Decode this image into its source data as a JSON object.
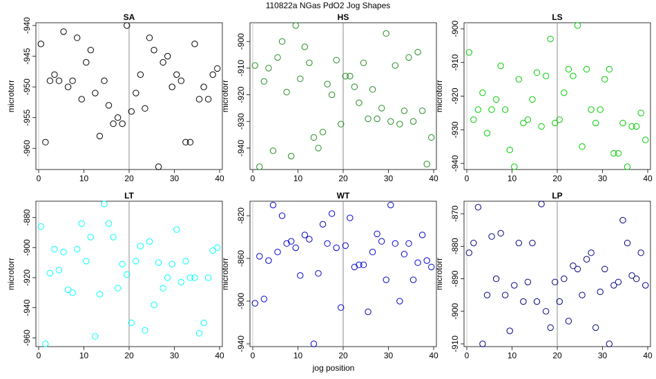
{
  "figure": {
    "title": "110822a   NGas PdO2 Jog Shapes",
    "xlabel": "jog position"
  },
  "chart_data": [
    {
      "type": "scatter",
      "title": "SA",
      "ylabel": "microtorr",
      "color": "#000000",
      "xlim": [
        0,
        40
      ],
      "ylim": [
        -963,
        -940
      ],
      "xticks": [
        0,
        10,
        20,
        30,
        40
      ],
      "yticks": [
        -960,
        -955,
        -950,
        -945,
        -940
      ],
      "vline_x": 20,
      "x": [
        0.5,
        1.5,
        2.5,
        3.5,
        4.5,
        5.5,
        6.5,
        7.5,
        8.5,
        9.5,
        10.5,
        11.5,
        12.5,
        13.5,
        14.5,
        15.5,
        16.5,
        17.5,
        18.5,
        19.5,
        20.5,
        21.5,
        22.5,
        23.5,
        24.5,
        25.5,
        26.5,
        27.5,
        28.5,
        29.5,
        30.5,
        31.5,
        32.5,
        33.5,
        34.5,
        35.5,
        36.5,
        37.5,
        38.5,
        39.5
      ],
      "y": [
        -943,
        -959,
        -949,
        -948,
        -949,
        -941,
        -950,
        -949,
        -942,
        -952,
        -946,
        -944,
        -951,
        -958,
        -949,
        -953,
        -956,
        -955,
        -956,
        -940,
        -954,
        -951,
        -948,
        -953.5,
        -942,
        -944,
        -963,
        -946,
        -945,
        -950,
        -948,
        -949,
        -959,
        -959,
        -943,
        -952,
        -950,
        -952,
        -948,
        -947
      ]
    },
    {
      "type": "scatter",
      "title": "HS",
      "ylabel": "microtorr",
      "color": "#228B22",
      "xlim": [
        0,
        40
      ],
      "ylim": [
        -947,
        -894
      ],
      "xticks": [
        0,
        10,
        20,
        30,
        40
      ],
      "yticks": [
        -940,
        -930,
        -920,
        -910,
        -900
      ],
      "vline_x": 20,
      "x": [
        0.5,
        1.5,
        2.5,
        3.5,
        4.5,
        5.5,
        6.5,
        7.5,
        8.5,
        9.5,
        10.5,
        11.5,
        12.5,
        13.5,
        14.5,
        15.5,
        16.5,
        17.5,
        18.5,
        19.5,
        20.5,
        21.5,
        22.5,
        23.5,
        24.5,
        25.5,
        26.5,
        27.5,
        28.5,
        29.5,
        30.5,
        31.5,
        32.5,
        33.5,
        34.5,
        35.5,
        36.5,
        37.5,
        38.5,
        39.5
      ],
      "y": [
        -909,
        -947,
        -915,
        -910,
        -941,
        -906,
        -900,
        -919,
        -943,
        -894,
        -914,
        -902,
        -908,
        -936,
        -940,
        -934,
        -916,
        -920,
        -907,
        -931,
        -913,
        -913,
        -917,
        -923,
        -908,
        -929,
        -918,
        -929,
        -925,
        -897,
        -930,
        -909,
        -931,
        -926,
        -906,
        -930,
        -904,
        -926,
        -946,
        -936
      ]
    },
    {
      "type": "scatter",
      "title": "LS",
      "ylabel": "microtorr",
      "color": "#00CC00",
      "xlim": [
        0,
        40
      ],
      "ylim": [
        -941,
        -899
      ],
      "xticks": [
        0,
        10,
        20,
        30,
        40
      ],
      "yticks": [
        -940,
        -930,
        -920,
        -910,
        -900
      ],
      "vline_x": 20,
      "x": [
        0.5,
        1.5,
        2.5,
        3.5,
        4.5,
        5.5,
        6.5,
        7.5,
        8.5,
        9.5,
        10.5,
        11.5,
        12.5,
        13.5,
        14.5,
        15.5,
        16.5,
        17.5,
        18.5,
        19.5,
        20.5,
        21.5,
        22.5,
        23.5,
        24.5,
        25.5,
        26.5,
        27.5,
        28.5,
        29.5,
        30.5,
        31.5,
        32.5,
        33.5,
        34.5,
        35.5,
        36.5,
        37.5,
        38.5,
        39.5
      ],
      "y": [
        -907,
        -927,
        -924,
        -919,
        -931,
        -924,
        -921,
        -911,
        -924,
        -936,
        -941,
        -915,
        -928,
        -927,
        -921,
        -913,
        -929,
        -914,
        -903,
        -928,
        -927,
        -919,
        -912,
        -914,
        -899,
        -935,
        -912,
        -924,
        -928,
        -924,
        -915,
        -912,
        -937,
        -937,
        -928,
        -941,
        -929,
        -929,
        -925,
        -933
      ]
    },
    {
      "type": "scatter",
      "title": "LT",
      "ylabel": "microtorr",
      "color": "#00FFFF",
      "xlim": [
        0,
        40
      ],
      "ylim": [
        -964,
        -871
      ],
      "xticks": [
        0,
        10,
        20,
        30,
        40
      ],
      "yticks": [
        -960,
        -940,
        -920,
        -900,
        -880
      ],
      "vline_x": 20,
      "x": [
        0.5,
        1.5,
        2.5,
        3.5,
        4.5,
        5.5,
        6.5,
        7.5,
        8.5,
        9.5,
        10.5,
        11.5,
        12.5,
        13.5,
        14.5,
        15.5,
        16.5,
        17.5,
        18.5,
        19.5,
        20.5,
        21.5,
        22.5,
        23.5,
        24.5,
        25.5,
        26.5,
        27.5,
        28.5,
        29.5,
        30.5,
        31.5,
        32.5,
        33.5,
        34.5,
        35.5,
        36.5,
        37.5,
        38.5,
        39.5
      ],
      "y": [
        -886,
        -964,
        -917,
        -901,
        -915,
        -903,
        -928,
        -930,
        -901,
        -884,
        -909,
        -893,
        -959,
        -931,
        -871,
        -884,
        -893,
        -927,
        -911,
        -918,
        -950,
        -909,
        -899,
        -955,
        -896,
        -938,
        -910,
        -927,
        -920,
        -911,
        -888,
        -923,
        -909,
        -920,
        -920,
        -957,
        -950,
        -920,
        -902,
        -900
      ]
    },
    {
      "type": "scatter",
      "title": "WT",
      "ylabel": "microtorr",
      "color": "#0000CC",
      "xlim": [
        0,
        40
      ],
      "ylim": [
        -940,
        -809
      ],
      "xticks": [
        0,
        10,
        20,
        30,
        40
      ],
      "yticks": [
        -940,
        -900,
        -860,
        -820
      ],
      "vline_x": 20,
      "x": [
        0.5,
        1.5,
        2.5,
        3.5,
        4.5,
        5.5,
        6.5,
        7.5,
        8.5,
        9.5,
        10.5,
        11.5,
        12.5,
        13.5,
        14.5,
        15.5,
        16.5,
        17.5,
        18.5,
        19.5,
        20.5,
        21.5,
        22.5,
        23.5,
        24.5,
        25.5,
        26.5,
        27.5,
        28.5,
        29.5,
        30.5,
        31.5,
        32.5,
        33.5,
        34.5,
        35.5,
        36.5,
        37.5,
        38.5,
        39.5
      ],
      "y": [
        -902,
        -858,
        -898,
        -862,
        -810,
        -854,
        -820,
        -846,
        -844,
        -850,
        -876,
        -838,
        -842,
        -940,
        -874,
        -828,
        -846,
        -818,
        -850,
        -906,
        -848,
        -822,
        -868,
        -866,
        -866,
        -910,
        -854,
        -837,
        -844,
        -880,
        -810,
        -846,
        -900,
        -856,
        -846,
        -880,
        -864,
        -838,
        -862,
        -868
      ]
    },
    {
      "type": "scatter",
      "title": "LP",
      "ylabel": "microtorr",
      "color": "#000080",
      "xlim": [
        0,
        40
      ],
      "ylim": [
        -910,
        -867
      ],
      "xticks": [
        0,
        10,
        20,
        30,
        40
      ],
      "yticks": [
        -910,
        -900,
        -890,
        -880,
        -870
      ],
      "vline_x": 20,
      "x": [
        0.5,
        1.5,
        2.5,
        3.5,
        4.5,
        5.5,
        6.5,
        7.5,
        8.5,
        9.5,
        10.5,
        11.5,
        12.5,
        13.5,
        14.5,
        15.5,
        16.5,
        17.5,
        18.5,
        19.5,
        20.5,
        21.5,
        22.5,
        23.5,
        24.5,
        25.5,
        26.5,
        27.5,
        28.5,
        29.5,
        30.5,
        31.5,
        32.5,
        33.5,
        34.5,
        35.5,
        36.5,
        37.5,
        38.5,
        39.5
      ],
      "y": [
        -882,
        -879,
        -868,
        -910,
        -895,
        -877,
        -890,
        -876,
        -895,
        -906,
        -892,
        -879,
        -897,
        -891,
        -879,
        -897,
        -867,
        -900,
        -905,
        -891,
        -897,
        -890,
        -903,
        -886,
        -887,
        -895,
        -884,
        -882,
        -905,
        -894,
        -887,
        -910,
        -892,
        -891,
        -872,
        -879,
        -889,
        -890,
        -882,
        -892
      ]
    }
  ]
}
